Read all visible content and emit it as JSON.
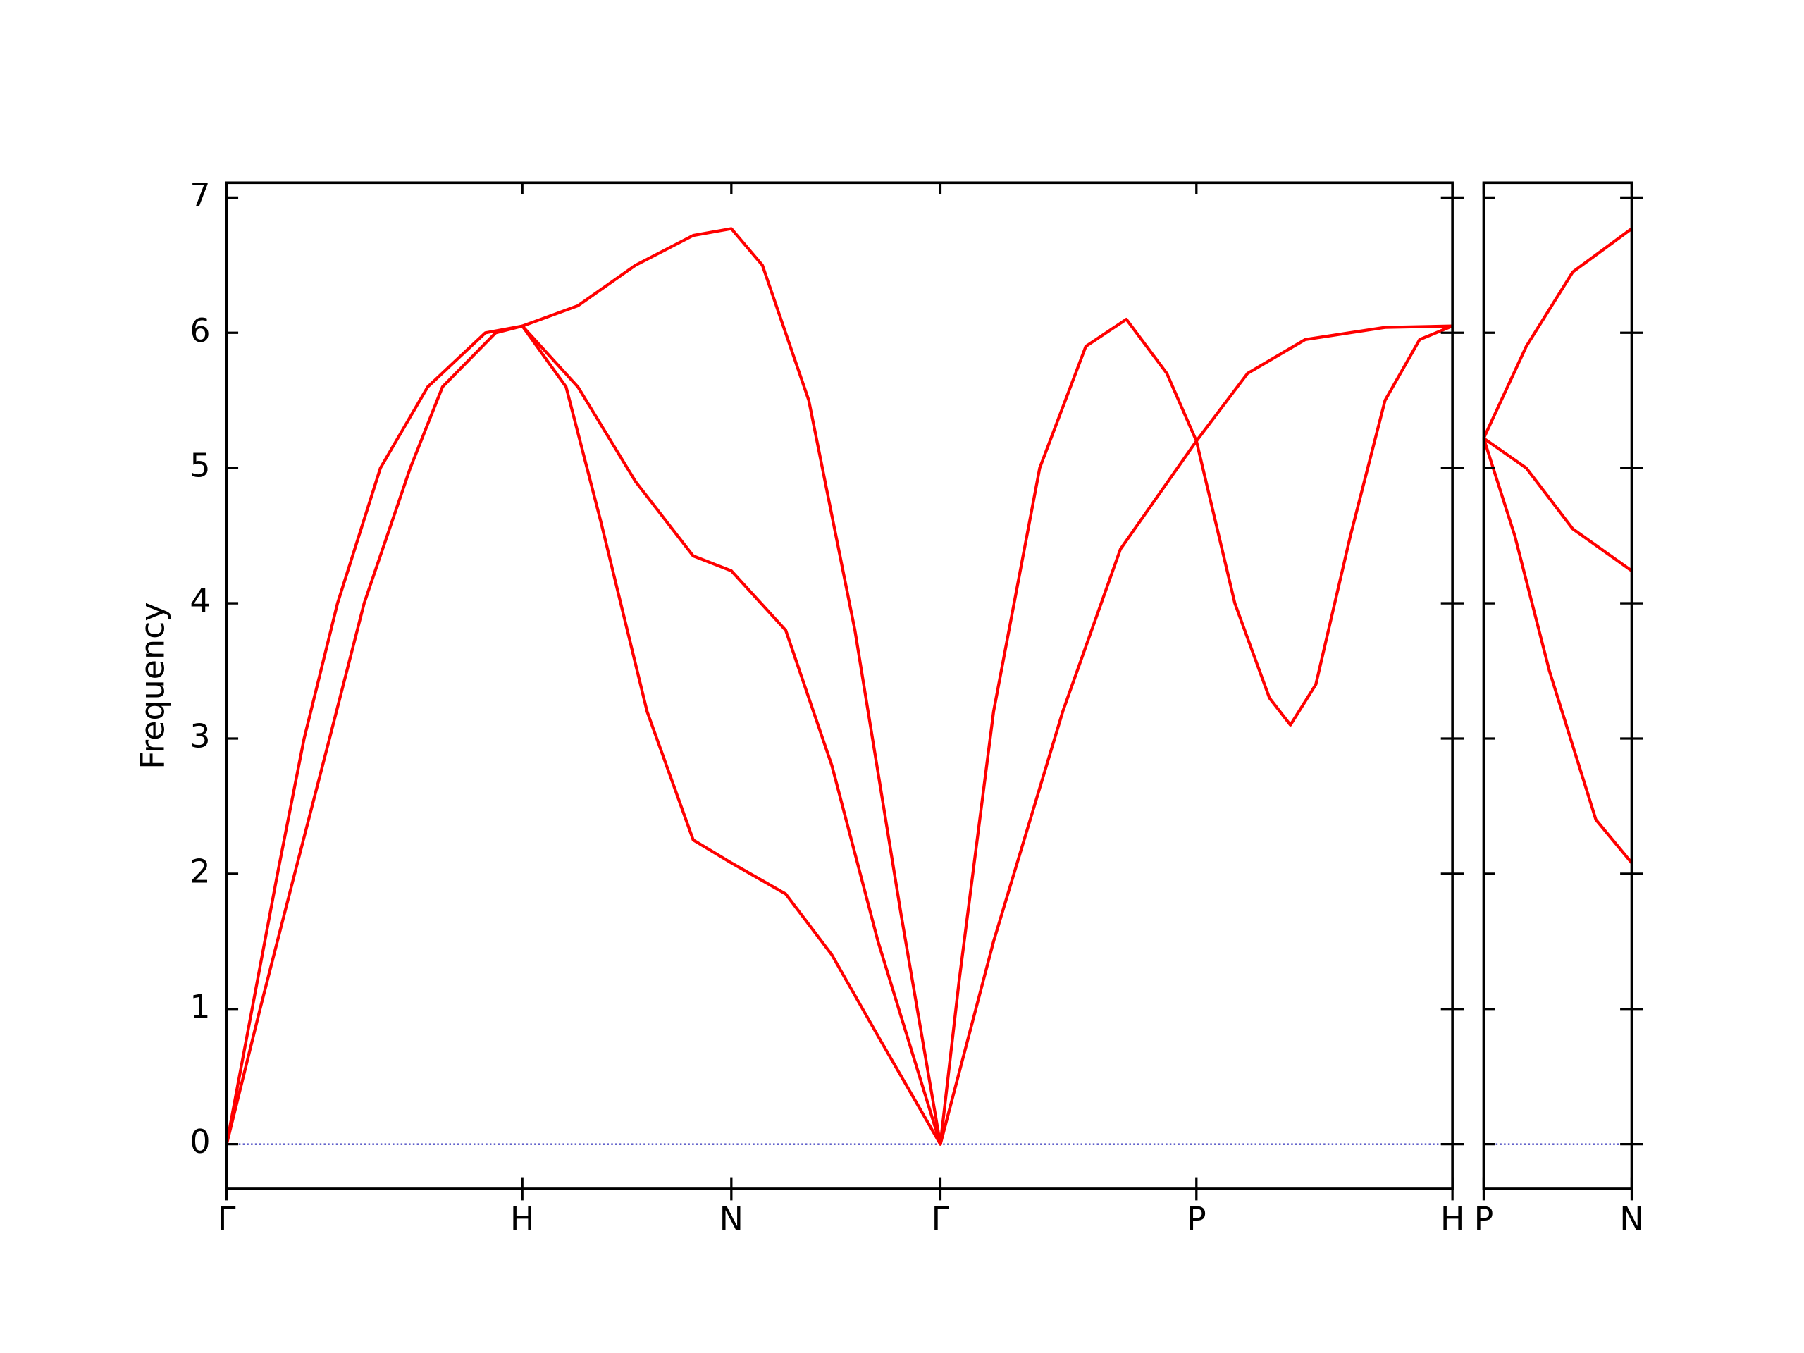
{
  "chart_data": [
    {
      "type": "line",
      "ylabel": "Frequency",
      "color": "#ff0000",
      "xlim": [
        0,
        4.146
      ],
      "ylim": [
        -0.33,
        7.11
      ],
      "xticks": [
        {
          "value": 0,
          "label": "Γ"
        },
        {
          "value": 1,
          "label": "H"
        },
        {
          "value": 1.707,
          "label": "N"
        },
        {
          "value": 2.414,
          "label": "Γ"
        },
        {
          "value": 3.28,
          "label": "P"
        },
        {
          "value": 4.146,
          "label": "H"
        }
      ],
      "yticks": [
        0,
        1,
        2,
        3,
        4,
        5,
        6,
        7
      ],
      "series": [
        {
          "x": [
            0,
            0.113,
            0.23,
            0.348,
            0.465,
            0.621,
            0.73,
            0.91,
            1,
            1.148,
            1.266,
            1.422,
            1.578,
            1.707,
            1.891,
            2.047,
            2.203,
            2.414,
            2.594,
            2.828,
            3.023,
            3.28,
            3.453,
            3.648,
            3.918,
            4.146
          ],
          "values": [
            0,
            1,
            2,
            3,
            4,
            5,
            5.6,
            6.0,
            6.05,
            5.6,
            4.6,
            3.2,
            2.25,
            2.08,
            1.85,
            1.4,
            0.8,
            0,
            1.5,
            3.2,
            4.4,
            5.2,
            5.7,
            5.95,
            6.04,
            6.05
          ]
        },
        {
          "x": [
            0,
            0.086,
            0.172,
            0.262,
            0.375,
            0.52,
            0.68,
            0.875,
            1,
            1.188,
            1.383,
            1.578,
            1.707,
            1.891,
            2.047,
            2.203,
            2.414,
            2.477,
            2.594,
            2.75,
            2.906,
            3.043,
            3.18,
            3.28,
            3.41,
            3.527,
            3.598,
            3.684,
            3.801,
            3.918,
            4.035,
            4.146
          ],
          "values": [
            0,
            1,
            2,
            3,
            4,
            5,
            5.6,
            6.0,
            6.05,
            5.6,
            4.9,
            4.35,
            4.24,
            3.8,
            2.8,
            1.5,
            0,
            1.2,
            3.2,
            5.0,
            5.9,
            6.1,
            5.7,
            5.2,
            4.0,
            3.3,
            3.1,
            3.4,
            4.5,
            5.5,
            5.95,
            6.05
          ]
        },
        {
          "x": [
            1,
            1.188,
            1.383,
            1.578,
            1.707,
            1.812,
            1.969,
            2.125,
            2.281,
            2.414
          ],
          "values": [
            6.05,
            6.2,
            6.5,
            6.72,
            6.77,
            6.5,
            5.5,
            3.8,
            1.7,
            0
          ]
        }
      ]
    },
    {
      "type": "line",
      "color": "#ff0000",
      "xlim": [
        4.146,
        4.646
      ],
      "ylim": [
        -0.33,
        7.11
      ],
      "xticks": [
        {
          "value": 4.146,
          "label": "P"
        },
        {
          "value": 4.646,
          "label": "N"
        }
      ],
      "yticks": [
        0,
        1,
        2,
        3,
        4,
        5,
        6,
        7
      ],
      "series": [
        {
          "x": [
            4.146,
            4.29,
            4.447,
            4.646
          ],
          "values": [
            5.22,
            5.9,
            6.45,
            6.77
          ]
        },
        {
          "x": [
            4.146,
            4.29,
            4.447,
            4.646
          ],
          "values": [
            5.22,
            5.0,
            4.55,
            4.24
          ]
        },
        {
          "x": [
            4.146,
            4.251,
            4.368,
            4.525,
            4.646
          ],
          "values": [
            5.22,
            4.5,
            3.5,
            2.4,
            2.08
          ]
        }
      ]
    }
  ]
}
